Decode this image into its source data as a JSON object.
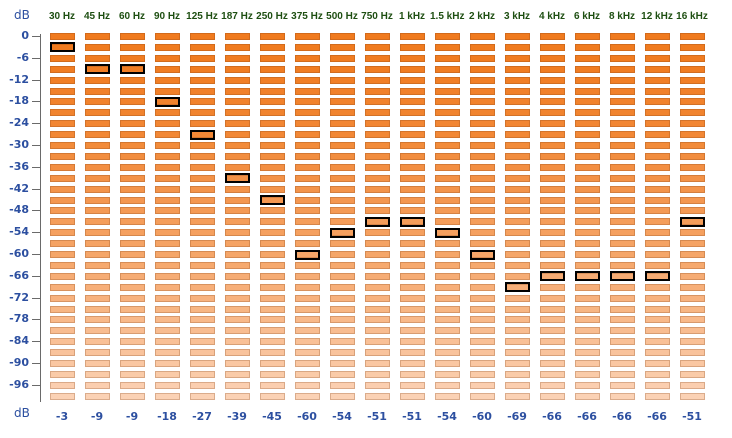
{
  "units": {
    "top": "dB",
    "bottom": "dB"
  },
  "frequencies": [
    "30 Hz",
    "45 Hz",
    "60 Hz",
    "90 Hz",
    "125 Hz",
    "187 Hz",
    "250 Hz",
    "375 Hz",
    "500 Hz",
    "750 Hz",
    "1 kHz",
    "1.5 kHz",
    "2 kHz",
    "3 kHz",
    "4 kHz",
    "6 kHz",
    "8 kHz",
    "12 kHz",
    "16 kHz"
  ],
  "y_ticks": [
    "0",
    "-6",
    "-12",
    "-18",
    "-24",
    "-30",
    "-36",
    "-42",
    "-48",
    "-54",
    "-60",
    "-66",
    "-72",
    "-78",
    "-84",
    "-90",
    "-96"
  ],
  "peak_values": [
    -3,
    -9,
    -9,
    -18,
    -27,
    -39,
    -45,
    -60,
    -54,
    -51,
    -51,
    -54,
    -60,
    -69,
    -66,
    -66,
    -66,
    -66,
    -51
  ],
  "bottom_values": [
    "-3",
    "-9",
    "-9",
    "-18",
    "-27",
    "-39",
    "-45",
    "-60",
    "-54",
    "-51",
    "-51",
    "-54",
    "-60",
    "-69",
    "-66",
    "-66",
    "-66",
    "-66",
    "-51"
  ],
  "colors": {
    "bar_top": "#f07a1e",
    "bar_bottom": "#fbd2b5",
    "peak_border": "#000000",
    "axis_text": "#2c4fa0",
    "freq_text": "#1e4f12"
  },
  "db_range": [
    0,
    -100
  ],
  "db_step": 3
}
